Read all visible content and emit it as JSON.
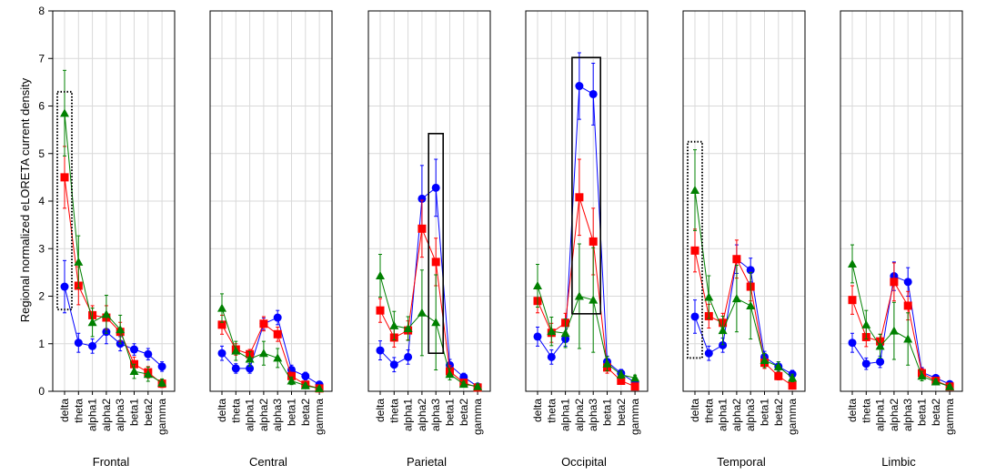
{
  "chart_data": {
    "type": "line",
    "ylabel": "Regional normalized eLORETA current density",
    "ylim": [
      0,
      8
    ],
    "yticks": [
      0,
      1,
      2,
      3,
      4,
      5,
      6,
      7,
      8
    ],
    "ytick_labels": [
      "0",
      "1",
      "2",
      "3",
      "4",
      "5",
      "6",
      "7",
      "8"
    ],
    "grid": true,
    "categories": [
      "delta",
      "theta",
      "alpha1",
      "alpha2",
      "alpha3",
      "beta1",
      "beta2",
      "gamma"
    ],
    "series_styles": [
      {
        "name": "blue",
        "color": "#0000ff",
        "marker": "circle"
      },
      {
        "name": "red",
        "color": "#ff0000",
        "marker": "square"
      },
      {
        "name": "green",
        "color": "#008000",
        "marker": "triangle"
      }
    ],
    "panels": [
      {
        "title": "Frontal",
        "series": [
          {
            "values": [
              2.2,
              1.02,
              0.95,
              1.25,
              1.0,
              0.88,
              0.78,
              0.52
            ],
            "err": [
              0.55,
              0.2,
              0.15,
              0.25,
              0.15,
              0.12,
              0.12,
              0.1
            ]
          },
          {
            "values": [
              4.5,
              2.22,
              1.6,
              1.55,
              1.25,
              0.57,
              0.4,
              0.16
            ],
            "err": [
              0.65,
              0.4,
              0.2,
              0.25,
              0.2,
              0.15,
              0.12,
              0.08
            ]
          },
          {
            "values": [
              5.85,
              2.72,
              1.45,
              1.62,
              1.3,
              0.42,
              0.36,
              0.18
            ],
            "err": [
              0.9,
              0.55,
              0.3,
              0.4,
              0.3,
              0.15,
              0.15,
              0.08
            ]
          }
        ],
        "boxes": [
          {
            "style": "dotted",
            "from": 0,
            "to": 0,
            "ymin": 1.72,
            "ymax": 6.3
          }
        ]
      },
      {
        "title": "Central",
        "series": [
          {
            "values": [
              0.8,
              0.48,
              0.48,
              1.42,
              1.55,
              0.45,
              0.32,
              0.14
            ],
            "err": [
              0.15,
              0.1,
              0.1,
              0.12,
              0.15,
              0.1,
              0.08,
              0.05
            ]
          },
          {
            "values": [
              1.4,
              0.88,
              0.78,
              1.42,
              1.2,
              0.32,
              0.14,
              0.06
            ],
            "err": [
              0.2,
              0.12,
              0.1,
              0.15,
              0.15,
              0.08,
              0.05,
              0.04
            ]
          },
          {
            "values": [
              1.75,
              0.85,
              0.68,
              0.8,
              0.7,
              0.22,
              0.12,
              0.06
            ],
            "err": [
              0.3,
              0.2,
              0.15,
              0.25,
              0.2,
              0.08,
              0.05,
              0.04
            ]
          }
        ],
        "boxes": []
      },
      {
        "title": "Parietal",
        "series": [
          {
            "values": [
              0.86,
              0.56,
              0.72,
              4.05,
              4.28,
              0.55,
              0.3,
              0.1
            ],
            "err": [
              0.2,
              0.15,
              0.15,
              0.7,
              0.6,
              0.12,
              0.08,
              0.05
            ]
          },
          {
            "values": [
              1.7,
              1.13,
              1.28,
              3.42,
              2.72,
              0.42,
              0.18,
              0.08
            ],
            "err": [
              0.25,
              0.2,
              0.2,
              0.6,
              0.5,
              0.12,
              0.06,
              0.04
            ]
          },
          {
            "values": [
              2.43,
              1.38,
              1.32,
              1.65,
              1.45,
              0.36,
              0.15,
              0.1
            ],
            "err": [
              0.45,
              0.3,
              0.25,
              0.9,
              1.0,
              0.12,
              0.06,
              0.05
            ]
          }
        ],
        "boxes": [
          {
            "style": "solid",
            "from": 4,
            "to": 4,
            "ymin": 0.8,
            "ymax": 5.42
          }
        ]
      },
      {
        "title": "Occipital",
        "series": [
          {
            "values": [
              1.15,
              0.72,
              1.1,
              6.42,
              6.25,
              0.62,
              0.38,
              0.18
            ],
            "err": [
              0.2,
              0.15,
              0.15,
              0.7,
              0.65,
              0.12,
              0.08,
              0.05
            ]
          },
          {
            "values": [
              1.9,
              1.23,
              1.44,
              4.08,
              3.15,
              0.5,
              0.22,
              0.1
            ],
            "err": [
              0.25,
              0.2,
              0.2,
              0.8,
              0.7,
              0.12,
              0.06,
              0.04
            ]
          },
          {
            "values": [
              2.22,
              1.26,
              1.22,
              2.0,
              1.92,
              0.58,
              0.35,
              0.28
            ],
            "err": [
              0.45,
              0.3,
              0.3,
              1.1,
              1.1,
              0.15,
              0.08,
              0.06
            ]
          }
        ],
        "boxes": [
          {
            "style": "solid",
            "from": 3,
            "to": 4,
            "ymin": 1.63,
            "ymax": 7.02
          }
        ]
      },
      {
        "title": "Temporal",
        "series": [
          {
            "values": [
              1.57,
              0.8,
              0.97,
              2.78,
              2.55,
              0.72,
              0.52,
              0.36
            ],
            "err": [
              0.35,
              0.15,
              0.15,
              0.3,
              0.25,
              0.12,
              0.1,
              0.08
            ]
          },
          {
            "values": [
              2.96,
              1.58,
              1.44,
              2.78,
              2.2,
              0.6,
              0.32,
              0.12
            ],
            "err": [
              0.45,
              0.25,
              0.2,
              0.4,
              0.3,
              0.12,
              0.08,
              0.05
            ]
          },
          {
            "values": [
              4.23,
              1.98,
              1.28,
              1.95,
              1.8,
              0.65,
              0.52,
              0.28
            ],
            "err": [
              0.85,
              0.45,
              0.3,
              0.7,
              0.7,
              0.15,
              0.1,
              0.08
            ]
          }
        ],
        "boxes": [
          {
            "style": "dotted",
            "from": 0,
            "to": 0,
            "ymin": 0.7,
            "ymax": 5.25
          }
        ]
      },
      {
        "title": "Limbic",
        "series": [
          {
            "values": [
              1.02,
              0.58,
              0.62,
              2.42,
              2.3,
              0.4,
              0.28,
              0.15
            ],
            "err": [
              0.2,
              0.12,
              0.12,
              0.3,
              0.3,
              0.1,
              0.06,
              0.05
            ]
          },
          {
            "values": [
              1.92,
              1.14,
              1.05,
              2.3,
              1.8,
              0.38,
              0.22,
              0.1
            ],
            "err": [
              0.3,
              0.2,
              0.15,
              0.4,
              0.3,
              0.1,
              0.06,
              0.04
            ]
          },
          {
            "values": [
              2.68,
              1.4,
              0.95,
              1.27,
              1.1,
              0.32,
              0.2,
              0.1
            ],
            "err": [
              0.4,
              0.3,
              0.25,
              0.6,
              0.55,
              0.1,
              0.06,
              0.04
            ]
          }
        ],
        "boxes": []
      }
    ]
  }
}
